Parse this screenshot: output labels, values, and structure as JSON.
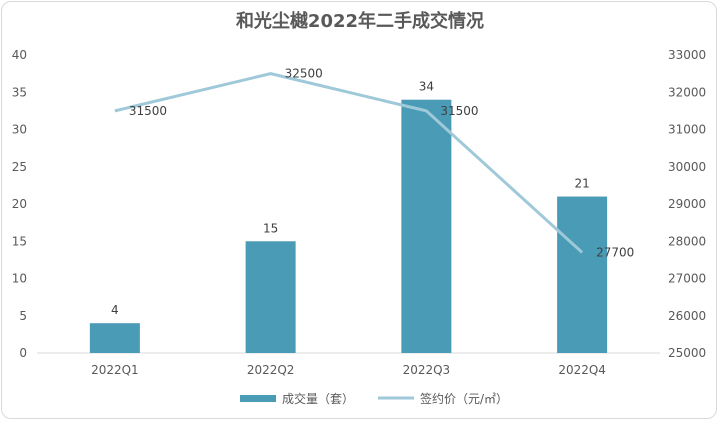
{
  "chart_data": {
    "type": "bar",
    "title": "和光尘樾2022年二手成交情况",
    "categories": [
      "2022Q1",
      "2022Q2",
      "2022Q3",
      "2022Q4"
    ],
    "series": [
      {
        "name": "成交量（套）",
        "type": "bar",
        "axis": "left",
        "values": [
          4,
          15,
          34,
          21
        ],
        "color": "#4a9bb5"
      },
      {
        "name": "签约价（元/㎡）",
        "type": "line",
        "axis": "right",
        "values": [
          31500,
          32500,
          31500,
          27700
        ],
        "color": "#9fc9d9"
      }
    ],
    "y_left": {
      "min": 0,
      "max": 40,
      "ticks": [
        "0",
        "5",
        "10",
        "15",
        "20",
        "25",
        "30",
        "35",
        "40"
      ]
    },
    "y_right": {
      "min": 25000,
      "max": 33000,
      "ticks": [
        "25000",
        "26000",
        "27000",
        "28000",
        "29000",
        "30000",
        "31000",
        "32000",
        "33000"
      ]
    },
    "grid": false,
    "legend_position": "bottom"
  }
}
